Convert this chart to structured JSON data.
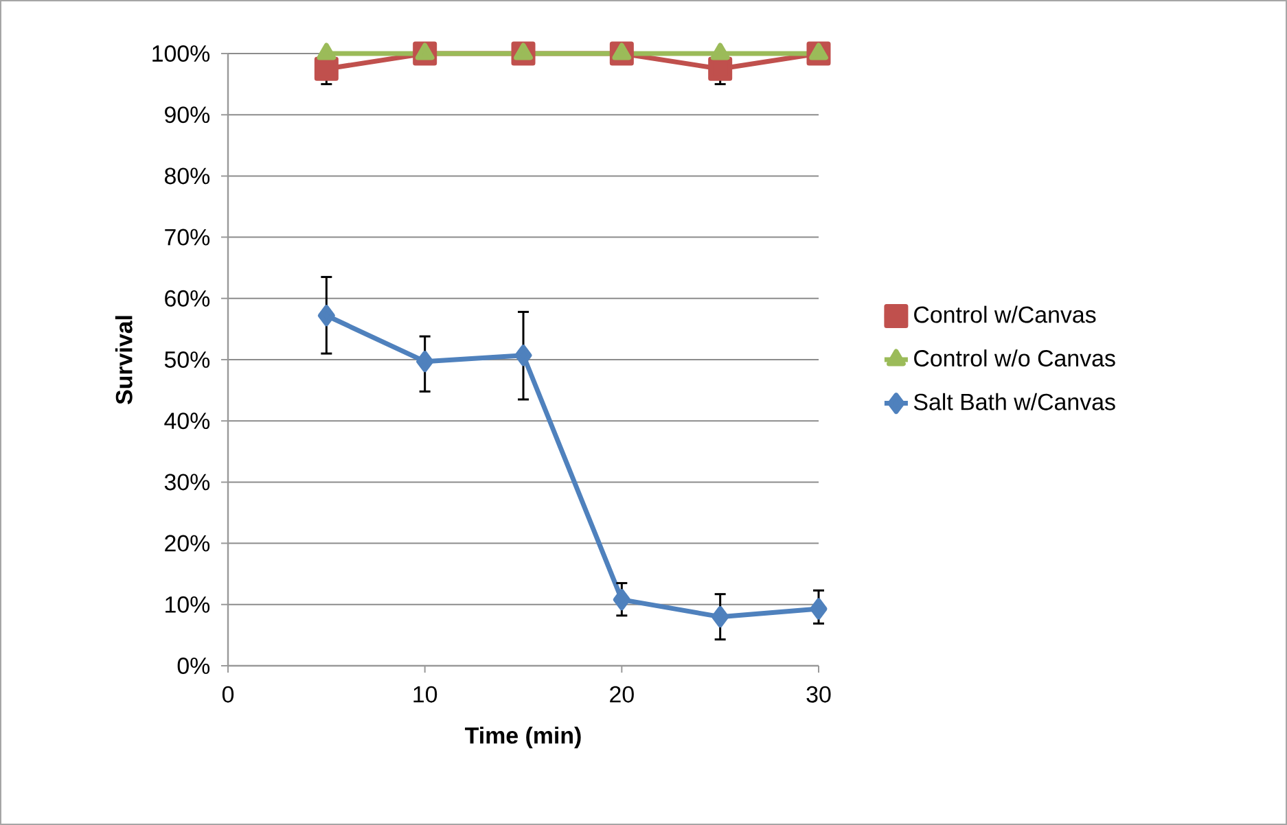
{
  "chart_data": {
    "type": "line",
    "xlabel": "Time (min)",
    "ylabel": "Survival",
    "x": [
      5,
      10,
      15,
      20,
      25,
      30
    ],
    "series": [
      {
        "name": "Control w/Canvas",
        "color": "#c0504d",
        "marker": "square",
        "values": [
          97.5,
          100,
          100,
          100,
          97.5,
          100
        ],
        "errors": [
          2.5,
          null,
          null,
          null,
          2.5,
          null
        ]
      },
      {
        "name": "Control w/o Canvas",
        "color": "#9bbb59",
        "marker": "triangle",
        "values": [
          100,
          100,
          100,
          100,
          100,
          100
        ]
      },
      {
        "name": "Salt Bath w/Canvas",
        "color": "#4f81bd",
        "marker": "diamond",
        "values": [
          57.2,
          49.7,
          50.7,
          10.8,
          8.0,
          9.3
        ],
        "errors": [
          [
            51,
            63.5
          ],
          [
            44.8,
            53.8
          ],
          [
            43.5,
            57.8
          ],
          [
            8.2,
            13.5
          ],
          [
            4.3,
            11.7
          ],
          [
            6.9,
            12.3
          ]
        ]
      }
    ],
    "xlim": [
      0,
      30
    ],
    "xticks": [
      0,
      10,
      20,
      30
    ],
    "ylim": [
      0,
      100
    ],
    "yticks": [
      {
        "value": 0,
        "label": "0%"
      },
      {
        "value": 10,
        "label": "10%"
      },
      {
        "value": 20,
        "label": "20%"
      },
      {
        "value": 30,
        "label": "30%"
      },
      {
        "value": 40,
        "label": "40%"
      },
      {
        "value": 50,
        "label": "50%"
      },
      {
        "value": 60,
        "label": "60%"
      },
      {
        "value": 70,
        "label": "70%"
      },
      {
        "value": 80,
        "label": "80%"
      },
      {
        "value": 90,
        "label": "90%"
      },
      {
        "value": 100,
        "label": "100%"
      }
    ],
    "grid": "y",
    "legend": "right"
  }
}
